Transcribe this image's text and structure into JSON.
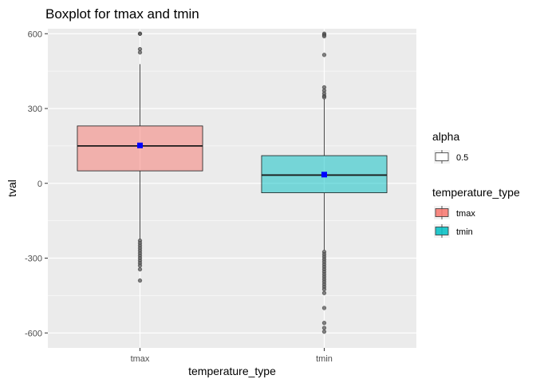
{
  "chart_data": {
    "type": "boxplot",
    "title": "Boxplot for tmax and tmin",
    "xlabel": "temperature_type",
    "ylabel": "tval",
    "ylim": [
      -660,
      620
    ],
    "yticks": [
      -600,
      -300,
      0,
      300,
      600
    ],
    "ytick_labels": [
      "-600",
      "-300",
      "0",
      "300",
      "600"
    ],
    "grid": true,
    "categories": [
      "tmax",
      "tmin"
    ],
    "boxes": [
      {
        "category": "tmax",
        "color": "#F8766D",
        "q1": 50,
        "median": 150,
        "q3": 230,
        "whisker_low": -225,
        "whisker_high": 478,
        "mean": 152,
        "outliers_high": [
          600,
          600,
          538,
          525
        ],
        "outliers_low": [
          -230,
          -240,
          -250,
          -260,
          -270,
          -280,
          -290,
          -300,
          -310,
          -320,
          -330,
          -345,
          -390
        ]
      },
      {
        "category": "tmin",
        "color": "#00BFC4",
        "q1": -38,
        "median": 33,
        "q3": 111,
        "whisker_low": -268,
        "whisker_high": 338,
        "mean": 35,
        "outliers_high": [
          600,
          595,
          590,
          515,
          385,
          372,
          360,
          350,
          345
        ],
        "outliers_low": [
          -275,
          -285,
          -295,
          -305,
          -315,
          -325,
          -335,
          -345,
          -355,
          -365,
          -375,
          -385,
          -395,
          -405,
          -415,
          -425,
          -440,
          -500,
          -560,
          -580,
          -595
        ]
      }
    ],
    "mean_color": "#0000FF",
    "legends": [
      {
        "title": "alpha",
        "entries": [
          {
            "label": "0.5",
            "fill": "#ffffff"
          }
        ]
      },
      {
        "title": "temperature_type",
        "entries": [
          {
            "label": "tmax",
            "fill": "#F8766D"
          },
          {
            "label": "tmin",
            "fill": "#00BFC4"
          }
        ]
      }
    ],
    "legend_position": "right"
  }
}
